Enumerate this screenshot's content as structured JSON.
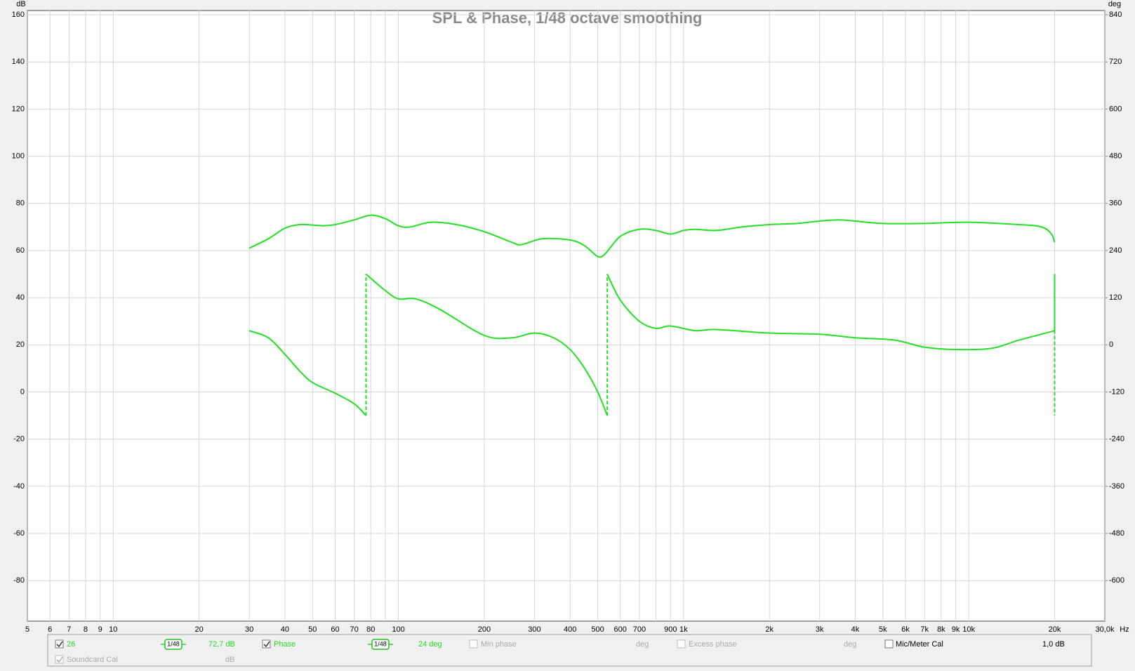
{
  "chart_data": {
    "type": "line",
    "title": "SPL & Phase, 1/48 octave smoothing",
    "y_label": "dB",
    "y2_label": "deg",
    "x_label": "Hz",
    "log_x": true,
    "grid": true,
    "xlim": [
      5,
      30000
    ],
    "xticks": [
      5,
      6,
      7,
      8,
      9,
      10,
      20,
      30,
      40,
      50,
      60,
      70,
      80,
      100,
      200,
      300,
      400,
      500,
      600,
      700,
      900,
      {
        "value": 1000,
        "label": "1k"
      },
      {
        "value": 2000,
        "label": "2k"
      },
      {
        "value": 3000,
        "label": "3k"
      },
      {
        "value": 4000,
        "label": "4k"
      },
      {
        "value": 5000,
        "label": "5k"
      },
      {
        "value": 6000,
        "label": "6k"
      },
      {
        "value": 7000,
        "label": "7k"
      },
      {
        "value": 8000,
        "label": "8k"
      },
      {
        "value": 9000,
        "label": "9k"
      },
      {
        "value": 10000,
        "label": "10k"
      },
      {
        "value": 20000,
        "label": "20k"
      },
      {
        "value": 30000,
        "label": "30,0k"
      }
    ],
    "xminor_ticks": [
      90,
      800
    ],
    "ylim": [
      -97.2,
      161.8
    ],
    "yticks": [
      160,
      140,
      120,
      100,
      80,
      60,
      40,
      20,
      0,
      -20,
      -40,
      -60,
      -80
    ],
    "y2lim": [
      -703.2,
      850.8
    ],
    "y2ticks": [
      840,
      720,
      600,
      480,
      360,
      240,
      120,
      0,
      -120,
      -240,
      -360,
      -480,
      -600
    ],
    "series": [
      {
        "name": "26",
        "color": "#22e022",
        "x": [
          30,
          35,
          40,
          45,
          50,
          55,
          60,
          70,
          80,
          90,
          100,
          110,
          130,
          160,
          200,
          250,
          270,
          320,
          400,
          450,
          500,
          530,
          600,
          700,
          800,
          900,
          1000,
          1100,
          1300,
          1600,
          2000,
          2500,
          3000,
          3500,
          4000,
          5000,
          7000,
          10000,
          15000,
          18000,
          19500,
          20000
        ],
        "values": [
          61,
          65,
          69.5,
          71,
          70.8,
          70.5,
          71,
          73,
          75,
          73.5,
          70.5,
          70,
          72,
          71,
          68,
          63.5,
          62.5,
          65,
          64.5,
          62,
          57.5,
          58.5,
          66,
          69,
          68.5,
          67,
          68.5,
          69,
          68.5,
          70,
          71,
          71.5,
          72.5,
          73,
          72.5,
          71.5,
          71.5,
          72,
          71,
          70,
          67,
          63.5
        ]
      },
      {
        "name": "Phase",
        "color": "#22e022",
        "axis": "y2",
        "x": [
          30,
          35,
          40,
          45,
          50,
          60,
          70,
          77,
          77,
          77,
          90,
          100,
          115,
          140,
          200,
          250,
          300,
          350,
          400,
          450,
          500,
          540,
          540,
          540,
          600,
          700,
          800,
          900,
          1100,
          1300,
          2000,
          3000,
          4000,
          5500,
          7000,
          9000,
          12000,
          15000,
          20000,
          20000,
          20000,
          20000,
          20000
        ],
        "values": [
          36,
          18,
          -24,
          -66,
          -96,
          -123,
          -150,
          -180,
          null,
          180,
          138,
          117,
          117,
          90,
          24,
          18,
          30,
          18,
          -12,
          -60,
          -120,
          -180,
          null,
          180,
          114,
          60,
          42,
          48,
          36,
          39,
          30,
          27,
          18,
          12,
          -6,
          -12,
          -9,
          12,
          36,
          null,
          180,
          null,
          -180
        ]
      }
    ]
  },
  "legend_panel": {
    "row1": [
      "26",
      "1/48",
      "72,7 dB",
      "Phase",
      "1/48",
      "24 deg",
      "Min phase",
      "deg",
      "Excess phase",
      "deg",
      "Mic/Meter Cal",
      "1,0 dB"
    ],
    "row2": [
      "Soundcard Cal",
      "dB"
    ]
  }
}
